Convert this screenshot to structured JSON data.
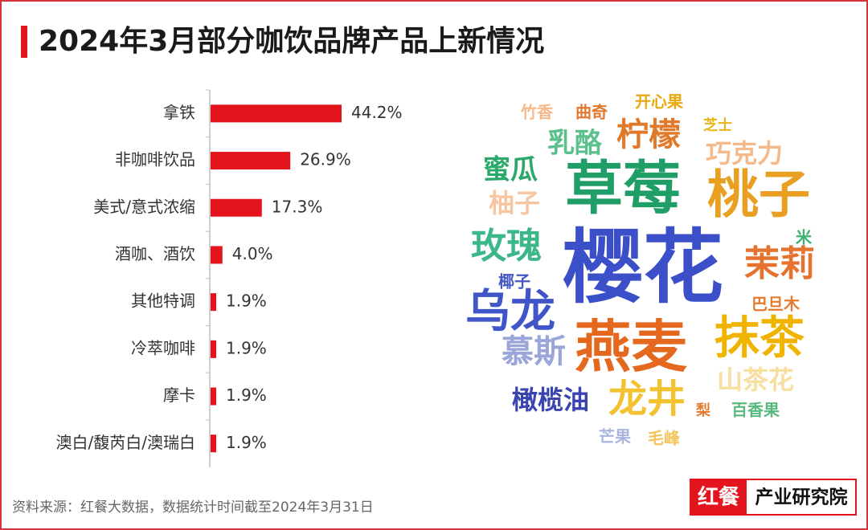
{
  "title": "2024年3月部分咖饮品牌产品上新情况",
  "chart_data": [
    {
      "type": "bar",
      "orientation": "horizontal",
      "categories": [
        "拿铁",
        "非咖啡饮品",
        "美式/意式浓缩",
        "酒咖、酒饮",
        "其他特调",
        "冷萃咖啡",
        "摩卡",
        "澳白/馥芮白/澳瑞白"
      ],
      "values": [
        44.2,
        26.9,
        17.3,
        4.0,
        1.9,
        1.9,
        1.9,
        1.9
      ],
      "value_labels": [
        "44.2%",
        "26.9%",
        "17.3%",
        "4.0%",
        "1.9%",
        "1.9%",
        "1.9%",
        "1.9%"
      ],
      "color": "#e3141d"
    },
    {
      "type": "wordcloud",
      "words": [
        "竹香",
        "曲奇",
        "开心果",
        "芝士",
        "柠檬",
        "乳酪",
        "巧克力",
        "蜜瓜",
        "草莓",
        "桃子",
        "柚子",
        "米",
        "玫瑰",
        "樱花",
        "茉莉",
        "椰子",
        "巴旦木",
        "乌龙",
        "燕麦",
        "抹茶",
        "慕斯",
        "山茶花",
        "橄榄油",
        "龙井",
        "梨",
        "百香果",
        "芒果",
        "毛峰"
      ],
      "colors": [
        "#f5b88a",
        "#e0782e",
        "#e8a90f",
        "#e8b418",
        "#e07a2a",
        "#5cc08c",
        "#f6b98a",
        "#2ba86a",
        "#1f9e68",
        "#e9a022",
        "#f7c6a0",
        "#3cb070",
        "#3cb78a",
        "#3a4fc8",
        "#e5722e",
        "#4458c4",
        "#e57a30",
        "#3f55c8",
        "#e4691f",
        "#f0b400",
        "#9aa6d9",
        "#f7dfa0",
        "#3a44b0",
        "#f2c230",
        "#e4782e",
        "#58b97e",
        "#aab4e0",
        "#f2c45a"
      ]
    }
  ],
  "footer": {
    "source": "资料来源：红餐大数据，数据统计时间截至2024年3月31日"
  },
  "logo": {
    "brand": "红餐",
    "name": "产业研究院"
  }
}
